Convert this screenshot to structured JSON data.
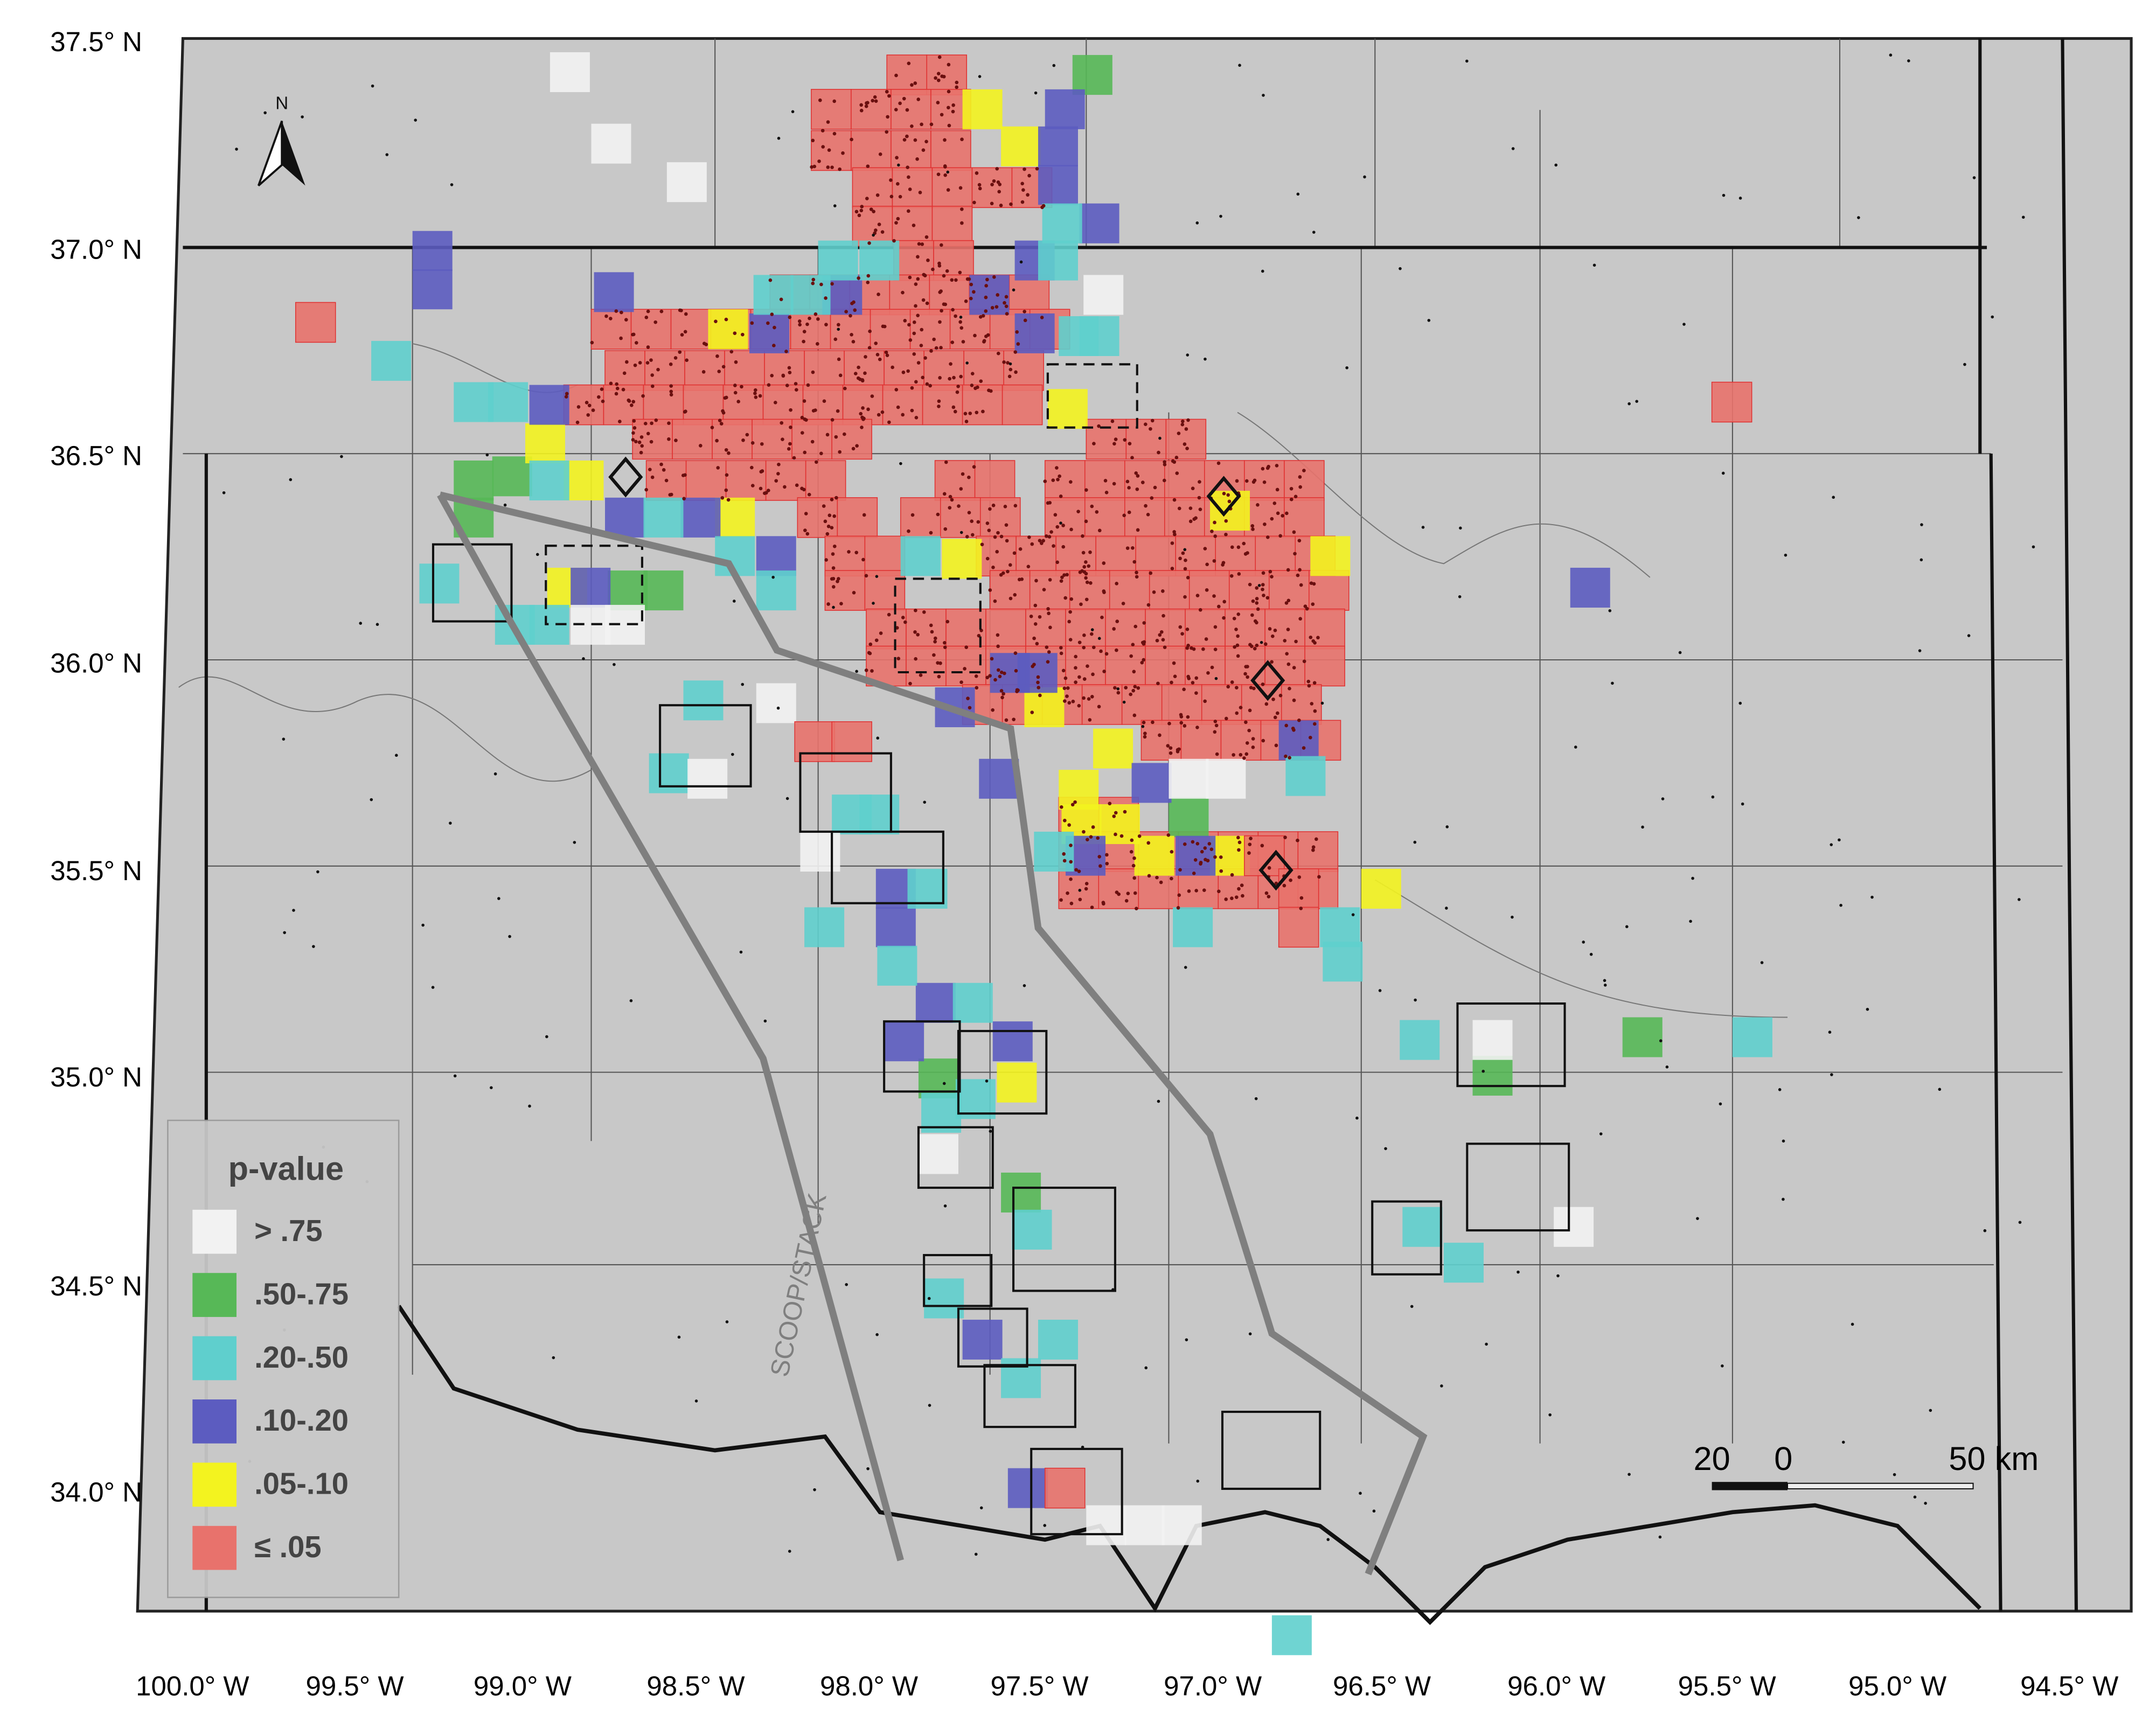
{
  "map": {
    "lat_labels": [
      "37.5° N",
      "37.0° N",
      "36.5° N",
      "36.0° N",
      "35.5° N",
      "35.0° N",
      "34.5° N",
      "34.0° N"
    ],
    "lon_labels": [
      "100.0° W",
      "99.5° W",
      "99.0° W",
      "98.5° W",
      "98.0° W",
      "97.5° W",
      "97.0° W",
      "96.5° W",
      "96.0° W",
      "95.5° W",
      "95.0° W",
      "94.5° W"
    ],
    "route_label": "SCOOP/STACK",
    "north": "N",
    "scale_bar": [
      "20",
      "0",
      "50 km"
    ]
  },
  "legend": {
    "title": "p-value",
    "items": [
      {
        "label": "> .75",
        "color": "#f2f2f2"
      },
      {
        "label": ".50-.75",
        "color": "#57b857"
      },
      {
        "label": ".20-.50",
        "color": "#5fcfcd"
      },
      {
        "label": ".10-.20",
        "color": "#5c5cc0"
      },
      {
        "label": ".05-.10",
        "color": "#f3f31f"
      },
      {
        "label": "≤ .05",
        "color": "#e8726c"
      }
    ]
  }
}
